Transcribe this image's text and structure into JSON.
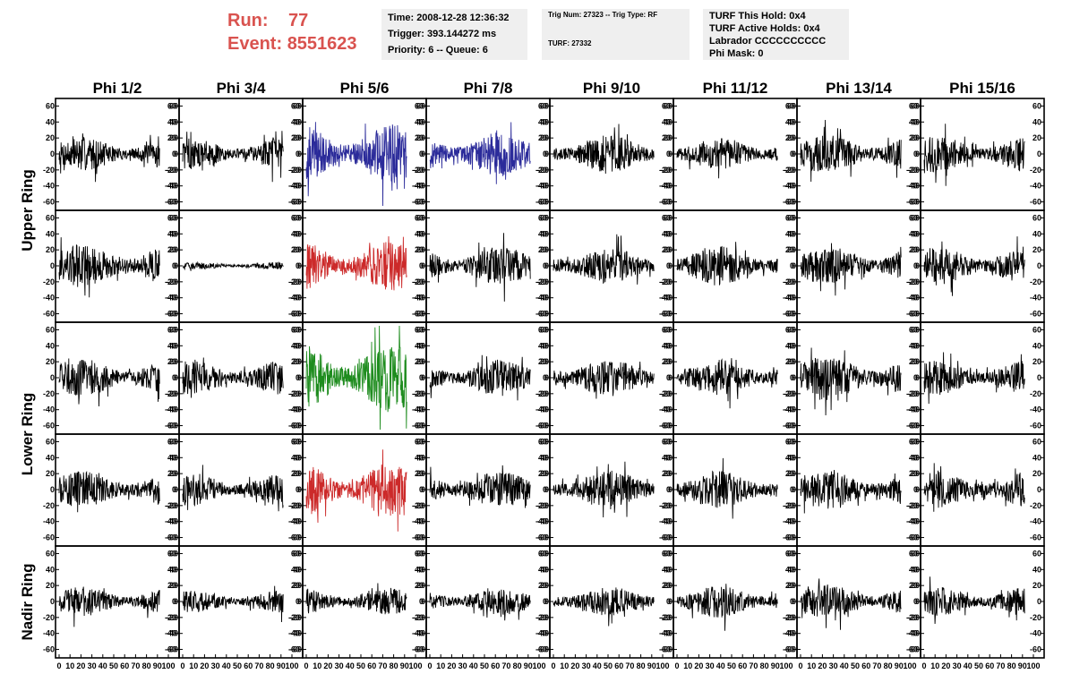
{
  "header": {
    "run_label": "Run:",
    "run_value": "77",
    "event_label": "Event:",
    "event_value": "8551623",
    "accent_color": "#d9534f"
  },
  "info_panel": {
    "time": "Time: 2008-12-28 12:36:32",
    "trigger": "Trigger: 393.144272 ms",
    "priority": "Priority: 6 -- Queue: 6"
  },
  "trig_panel": {
    "trig_num": "Trig Num: 27323 -- Trig Type: RF",
    "turf": "TURF: 27332"
  },
  "turf_panel": {
    "this_hold": "TURF This Hold: 0x4",
    "active_holds": "TURF Active Holds: 0x4",
    "labrador": "Labrador CCCCCCCCCC",
    "phi_mask": "Phi Mask: 0"
  },
  "chart_data": {
    "type": "line",
    "title": "",
    "columns": [
      "Phi 1/2",
      "Phi 3/4",
      "Phi 5/6",
      "Phi 7/8",
      "Phi 9/10",
      "Phi 11/12",
      "Phi 13/14",
      "Phi 15/16"
    ],
    "ring_labels": [
      "Upper Ring",
      "Lower Ring",
      "Nadir Ring"
    ],
    "rows": 5,
    "xlim": [
      0,
      100
    ],
    "ylim": [
      -65,
      65
    ],
    "xticks": [
      "0",
      "10",
      "20",
      "30",
      "40",
      "50",
      "60",
      "70",
      "80",
      "90",
      "100"
    ],
    "yticks": [
      "60",
      "40",
      "20",
      "0",
      "-20",
      "-40",
      "-60"
    ],
    "default_color": "#000000",
    "highlighted_traces": [
      {
        "row": 0,
        "col": 2,
        "color": "#2b2b9a"
      },
      {
        "row": 0,
        "col": 3,
        "color": "#2b2b9a"
      },
      {
        "row": 1,
        "col": 2,
        "color": "#cc2a2a"
      },
      {
        "row": 2,
        "col": 2,
        "color": "#1e8c1e"
      },
      {
        "row": 3,
        "col": 2,
        "color": "#cc2a2a"
      }
    ],
    "trace_amplitudes": [
      [
        14,
        13,
        24,
        18,
        16,
        13,
        16,
        15
      ],
      [
        18,
        3,
        20,
        16,
        15,
        16,
        16,
        16
      ],
      [
        16,
        14,
        28,
        15,
        16,
        15,
        18,
        14
      ],
      [
        15,
        13,
        22,
        15,
        16,
        15,
        16,
        15
      ],
      [
        12,
        9,
        11,
        11,
        12,
        13,
        14,
        12
      ]
    ]
  }
}
